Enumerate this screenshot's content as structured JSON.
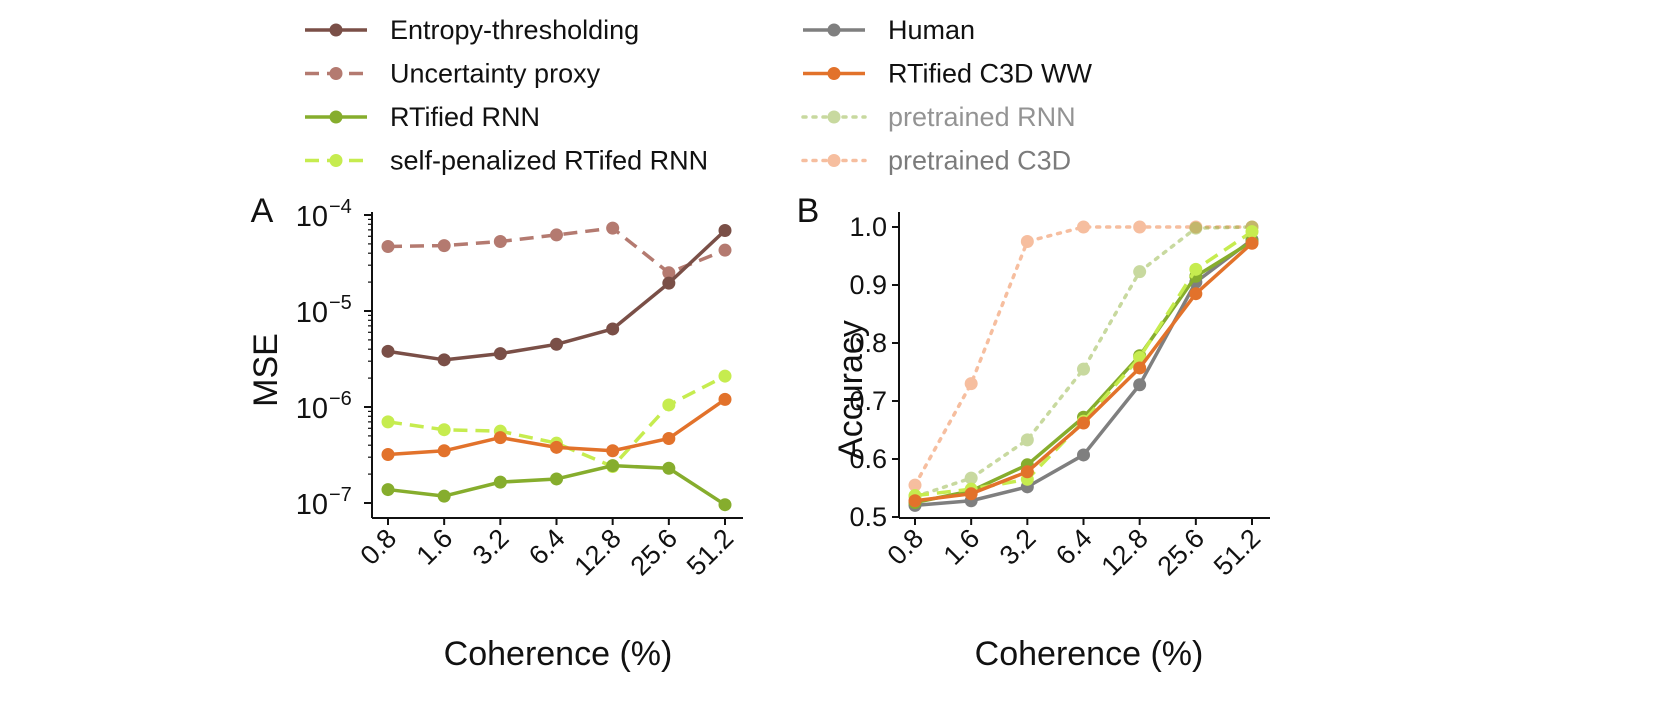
{
  "legend": [
    {
      "label": "Entropy-thresholding",
      "color": "#7a4f47",
      "dash": "solid",
      "alpha": 1
    },
    {
      "label": "Uncertainty proxy",
      "color": "#b47a70",
      "dash": "dashed",
      "alpha": 1
    },
    {
      "label": "RTified RNN",
      "color": "#86ad2d",
      "dash": "solid",
      "alpha": 1
    },
    {
      "label": "self-penalized RTifed RNN",
      "color": "#c6ec4f",
      "dash": "dashed",
      "alpha": 1
    },
    {
      "label": "Human",
      "color": "#7f7f7f",
      "dash": "solid",
      "alpha": 1
    },
    {
      "label": "RTified C3D  WW",
      "color": "#e2722b",
      "dash": "solid",
      "alpha": 1
    },
    {
      "label": "pretrained RNN",
      "color": "#86ad2d",
      "dash": "dotted",
      "alpha": 0.45
    },
    {
      "label": "pretrained C3D",
      "color": "#f08a52",
      "dash": "dotted",
      "alpha": 0.55
    }
  ],
  "chart_data": [
    {
      "panel": "A",
      "type": "line",
      "xlabel": "Coherence (%)",
      "ylabel": "MSE",
      "yscale": "log",
      "ylim": [
        1e-07,
        0.0001
      ],
      "categories": [
        "0.8",
        "1.6",
        "3.2",
        "6.4",
        "12.8",
        "25.6",
        "51.2"
      ],
      "ytick_base": "10",
      "yticks": [
        {
          "exp": "−7",
          "value": 1e-07
        },
        {
          "exp": "−6",
          "value": 1e-06
        },
        {
          "exp": "−5",
          "value": 1e-05
        },
        {
          "exp": "−4",
          "value": 0.0001
        }
      ],
      "series": [
        {
          "name": "Uncertainty proxy",
          "values": [
            4.7e-05,
            4.8e-05,
            5.3e-05,
            6.2e-05,
            7.3e-05,
            2.5e-05,
            4.3e-05
          ]
        },
        {
          "name": "Entropy-thresholding",
          "values": [
            3.8e-06,
            3.1e-06,
            3.6e-06,
            4.5e-06,
            6.5e-06,
            1.95e-05,
            6.9e-05
          ]
        },
        {
          "name": "self-penalized RTifed RNN",
          "values": [
            7e-07,
            5.8e-07,
            5.6e-07,
            4.2e-07,
            2.4e-07,
            1.05e-06,
            2.1e-06
          ]
        },
        {
          "name": "RTified C3D  WW",
          "values": [
            3.2e-07,
            3.5e-07,
            4.8e-07,
            3.8e-07,
            3.5e-07,
            4.7e-07,
            1.2e-06
          ]
        },
        {
          "name": "RTified RNN",
          "values": [
            1.38e-07,
            1.18e-07,
            1.65e-07,
            1.78e-07,
            2.45e-07,
            2.3e-07,
            9.6e-08
          ]
        }
      ]
    },
    {
      "panel": "B",
      "type": "line",
      "xlabel": "Coherence (%)",
      "ylabel": "Accuracy",
      "yscale": "linear",
      "ylim": [
        0.5,
        1.0
      ],
      "categories": [
        "0.8",
        "1.6",
        "3.2",
        "6.4",
        "12.8",
        "25.6",
        "51.2"
      ],
      "yticks": [
        "0.5",
        "0.6",
        "0.7",
        "0.8",
        "0.9",
        "1.0"
      ],
      "series": [
        {
          "name": "pretrained C3D",
          "values": [
            0.555,
            0.73,
            0.975,
            1.0,
            1.0,
            1.0,
            1.0
          ]
        },
        {
          "name": "pretrained RNN",
          "values": [
            0.535,
            0.567,
            0.633,
            0.755,
            0.923,
            0.998,
            1.0
          ]
        },
        {
          "name": "Human",
          "values": [
            0.52,
            0.528,
            0.552,
            0.607,
            0.728,
            0.905,
            0.978
          ]
        },
        {
          "name": "RTified RNN",
          "values": [
            0.525,
            0.545,
            0.59,
            0.672,
            0.778,
            0.915,
            0.975
          ]
        },
        {
          "name": "self-penalized RTifed RNN",
          "values": [
            0.537,
            0.548,
            0.565,
            0.665,
            0.775,
            0.927,
            0.992
          ]
        },
        {
          "name": "RTified C3D  WW",
          "values": [
            0.528,
            0.54,
            0.578,
            0.662,
            0.757,
            0.885,
            0.972
          ]
        }
      ]
    }
  ],
  "panel_labels": [
    "A",
    "B"
  ]
}
